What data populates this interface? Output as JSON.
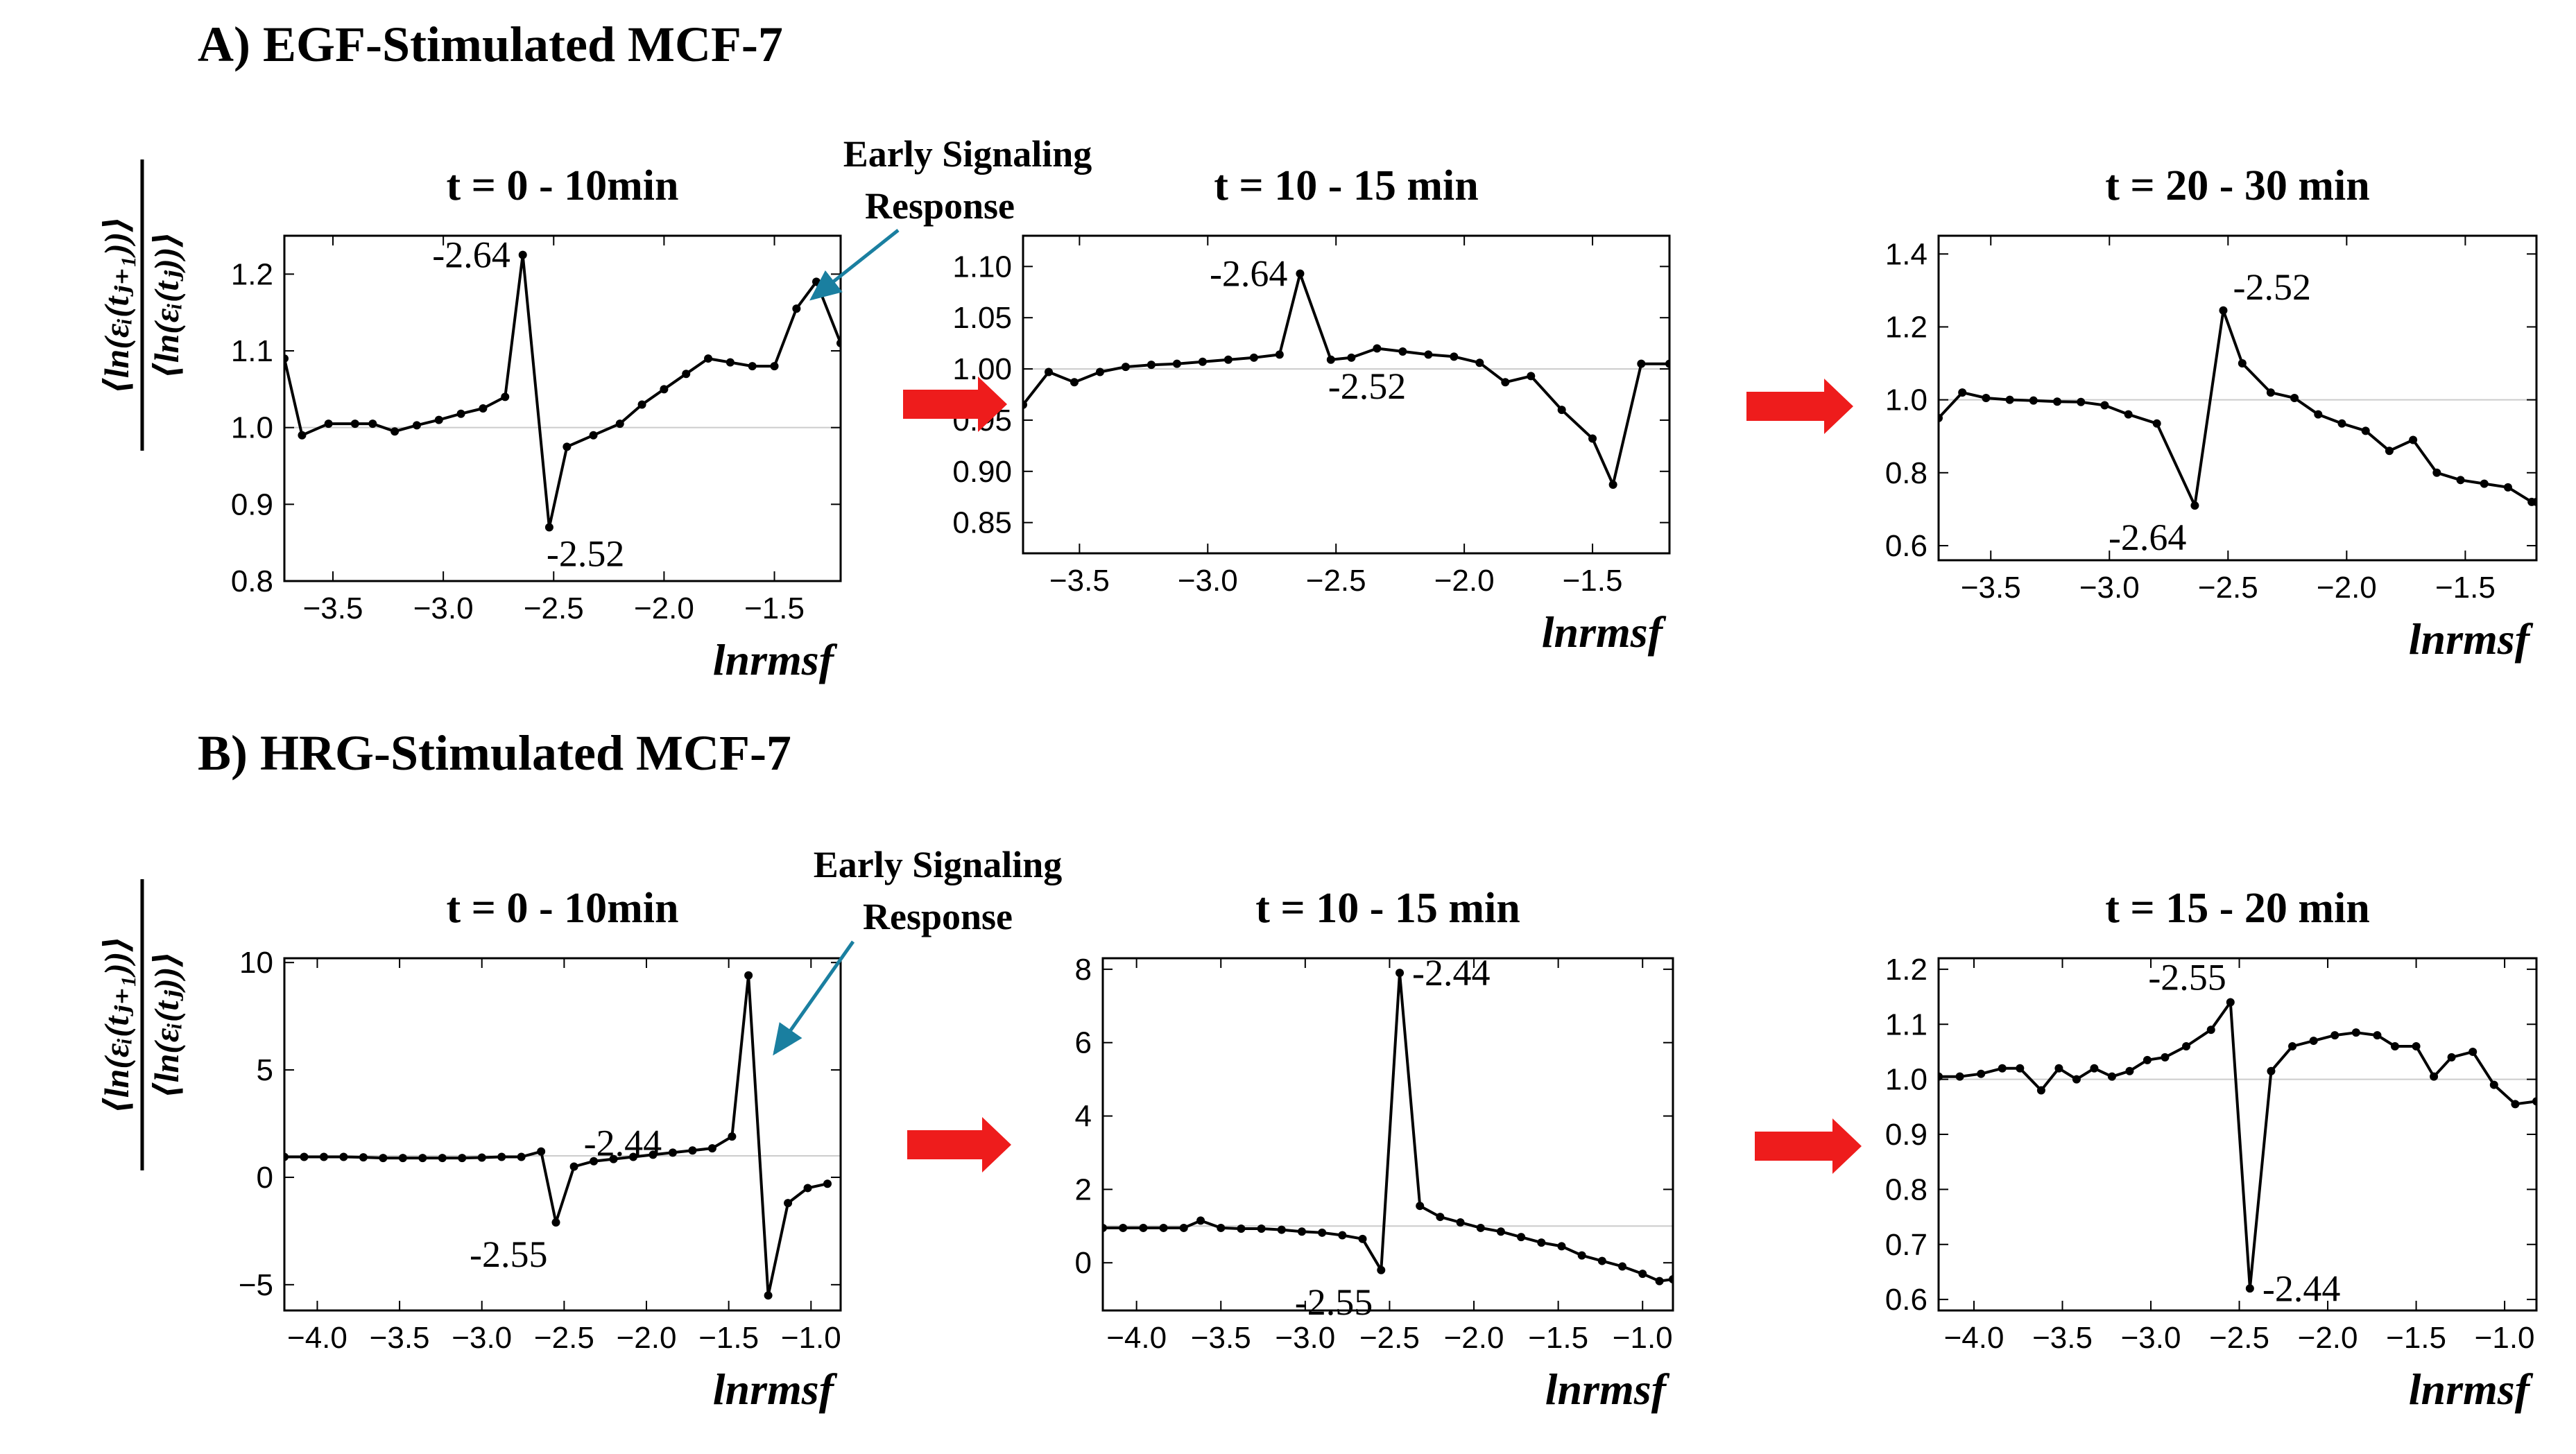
{
  "figure": {
    "section_a": "A) EGF-Stimulated MCF-7",
    "section_b": "B) HRG-Stimulated MCF-7",
    "ylabel_numerator": "⟨ln(εᵢ(tⱼ₊₁))⟩",
    "ylabel_denominator": "⟨ln(εᵢ(tⱼ))⟩",
    "early_line1": "Early Signaling",
    "early_line2": "Response"
  },
  "colors": {
    "line": "#000000",
    "arrow": "#ee1c1c",
    "pointer": "#1a7fa0",
    "refline": "#cccccc"
  },
  "chart_data": [
    {
      "id": "a1",
      "type": "line",
      "title": "t = 0 - 10min",
      "xlabel": "lnrmsf",
      "ylabel": "",
      "xlim": [
        -3.72,
        -1.2
      ],
      "ylim": [
        0.8,
        1.25
      ],
      "xticks": [
        -3.5,
        -3.0,
        -2.5,
        -2.0,
        -1.5
      ],
      "xtick_labels": [
        "−3.5",
        "−3.0",
        "−2.5",
        "−2.0",
        "−1.5"
      ],
      "yticks": [
        0.8,
        0.9,
        1.0,
        1.1,
        1.2
      ],
      "ytick_labels": [
        "0.8",
        "0.9",
        "1.0",
        "1.1",
        "1.2"
      ],
      "refline": 1.0,
      "x": [
        -3.72,
        -3.64,
        -3.52,
        -3.4,
        -3.32,
        -3.22,
        -3.12,
        -3.02,
        -2.92,
        -2.82,
        -2.72,
        -2.64,
        -2.52,
        -2.44,
        -2.32,
        -2.2,
        -2.1,
        -2.0,
        -1.9,
        -1.8,
        -1.7,
        -1.6,
        -1.5,
        -1.4,
        -1.31,
        -1.2
      ],
      "y": [
        1.09,
        0.99,
        1.005,
        1.005,
        1.005,
        0.995,
        1.003,
        1.01,
        1.018,
        1.025,
        1.04,
        1.225,
        0.87,
        0.975,
        0.99,
        1.005,
        1.03,
        1.05,
        1.07,
        1.09,
        1.085,
        1.08,
        1.08,
        1.155,
        1.19,
        1.11
      ],
      "annotations": [
        {
          "text": "-2.64",
          "x": -2.64,
          "y": 1.225,
          "pos": "left"
        },
        {
          "text": "-2.52",
          "x": -2.52,
          "y": 0.87,
          "pos": "below-right"
        }
      ],
      "early_response": {
        "x": -1.31,
        "y": 1.19
      }
    },
    {
      "id": "a2",
      "type": "line",
      "title": "t = 10 - 15 min",
      "xlabel": "lnrmsf",
      "ylabel": "",
      "xlim": [
        -3.72,
        -1.2
      ],
      "ylim": [
        0.82,
        1.13
      ],
      "xticks": [
        -3.5,
        -3.0,
        -2.5,
        -2.0,
        -1.5
      ],
      "xtick_labels": [
        "−3.5",
        "−3.0",
        "−2.5",
        "−2.0",
        "−1.5"
      ],
      "yticks": [
        0.85,
        0.9,
        0.95,
        1.0,
        1.05,
        1.1
      ],
      "ytick_labels": [
        "0.85",
        "0.90",
        "0.95",
        "1.00",
        "1.05",
        "1.10"
      ],
      "refline": 1.0,
      "x": [
        -3.72,
        -3.62,
        -3.52,
        -3.42,
        -3.32,
        -3.22,
        -3.12,
        -3.02,
        -2.92,
        -2.82,
        -2.72,
        -2.64,
        -2.52,
        -2.44,
        -2.34,
        -2.24,
        -2.14,
        -2.04,
        -1.94,
        -1.84,
        -1.74,
        -1.62,
        -1.5,
        -1.42,
        -1.31,
        -1.2
      ],
      "y": [
        0.965,
        0.997,
        0.987,
        0.997,
        1.002,
        1.004,
        1.005,
        1.007,
        1.009,
        1.011,
        1.014,
        1.093,
        1.009,
        1.011,
        1.02,
        1.017,
        1.014,
        1.012,
        1.006,
        0.987,
        0.993,
        0.96,
        0.932,
        0.887,
        1.005,
        1.005
      ],
      "annotations": [
        {
          "text": "-2.64",
          "x": -2.64,
          "y": 1.093,
          "pos": "left"
        },
        {
          "text": "-2.52",
          "x": -2.52,
          "y": 1.009,
          "pos": "below-right"
        }
      ]
    },
    {
      "id": "a3",
      "type": "line",
      "title": "t = 20 - 30 min",
      "xlabel": "lnrmsf",
      "ylabel": "",
      "xlim": [
        -3.72,
        -1.2
      ],
      "ylim": [
        0.56,
        1.45
      ],
      "xticks": [
        -3.5,
        -3.0,
        -2.5,
        -2.0,
        -1.5
      ],
      "xtick_labels": [
        "−3.5",
        "−3.0",
        "−2.5",
        "−2.0",
        "−1.5"
      ],
      "yticks": [
        0.6,
        0.8,
        1.0,
        1.2,
        1.4
      ],
      "ytick_labels": [
        "0.6",
        "0.8",
        "1.0",
        "1.2",
        "1.4"
      ],
      "refline": 1.0,
      "x": [
        -3.72,
        -3.62,
        -3.52,
        -3.42,
        -3.32,
        -3.22,
        -3.12,
        -3.02,
        -2.92,
        -2.8,
        -2.64,
        -2.52,
        -2.44,
        -2.32,
        -2.22,
        -2.12,
        -2.02,
        -1.92,
        -1.82,
        -1.72,
        -1.62,
        -1.52,
        -1.42,
        -1.32,
        -1.22,
        -1.2
      ],
      "y": [
        0.95,
        1.02,
        1.005,
        1.0,
        0.998,
        0.995,
        0.994,
        0.985,
        0.96,
        0.935,
        0.71,
        1.245,
        1.1,
        1.02,
        1.005,
        0.96,
        0.935,
        0.915,
        0.86,
        0.89,
        0.8,
        0.78,
        0.77,
        0.76,
        0.72,
        0.72
      ],
      "annotations": [
        {
          "text": "-2.52",
          "x": -2.52,
          "y": 1.245,
          "pos": "above-right"
        },
        {
          "text": "-2.64",
          "x": -2.64,
          "y": 0.71,
          "pos": "below-left"
        }
      ]
    },
    {
      "id": "b1",
      "type": "line",
      "title": "t = 0 - 10min",
      "xlabel": "lnrmsf",
      "ylabel": "",
      "xlim": [
        -4.2,
        -0.82
      ],
      "ylim": [
        -6.2,
        10.2
      ],
      "xticks": [
        -4.0,
        -3.5,
        -3.0,
        -2.5,
        -2.0,
        -1.5,
        -1.0
      ],
      "xtick_labels": [
        "−4.0",
        "−3.5",
        "−3.0",
        "−2.5",
        "−2.0",
        "−1.5",
        "−1.0"
      ],
      "yticks": [
        -5,
        0,
        5,
        10
      ],
      "ytick_labels": [
        "−5",
        "0",
        "5",
        "10"
      ],
      "refline": 1.0,
      "x": [
        -4.2,
        -4.08,
        -3.96,
        -3.84,
        -3.72,
        -3.6,
        -3.48,
        -3.36,
        -3.24,
        -3.12,
        -3.0,
        -2.88,
        -2.76,
        -2.64,
        -2.55,
        -2.44,
        -2.32,
        -2.2,
        -2.08,
        -1.96,
        -1.84,
        -1.72,
        -1.6,
        -1.48,
        -1.38,
        -1.26,
        -1.14,
        -1.02,
        -0.9
      ],
      "y": [
        0.95,
        0.95,
        0.95,
        0.95,
        0.93,
        0.9,
        0.9,
        0.9,
        0.9,
        0.9,
        0.92,
        0.95,
        0.95,
        1.2,
        -2.1,
        0.5,
        0.75,
        0.85,
        0.95,
        1.05,
        1.15,
        1.25,
        1.35,
        1.9,
        9.4,
        -5.5,
        -1.2,
        -0.5,
        -0.3
      ],
      "annotations": [
        {
          "text": "-2.44",
          "x": -2.44,
          "y": 0.5,
          "pos": "above-right"
        },
        {
          "text": "-2.55",
          "x": -2.55,
          "y": -2.1,
          "pos": "below-left"
        }
      ],
      "early_response": {
        "x": -1.22,
        "y": 5.8
      }
    },
    {
      "id": "b2",
      "type": "line",
      "title": "t = 10 - 15 min",
      "xlabel": "lnrmsf",
      "ylabel": "",
      "xlim": [
        -4.2,
        -0.82
      ],
      "ylim": [
        -1.3,
        8.3
      ],
      "xticks": [
        -4.0,
        -3.5,
        -3.0,
        -2.5,
        -2.0,
        -1.5,
        -1.0
      ],
      "xtick_labels": [
        "−4.0",
        "−3.5",
        "−3.0",
        "−2.5",
        "−2.0",
        "−1.5",
        "−1.0"
      ],
      "yticks": [
        0,
        2,
        4,
        6,
        8
      ],
      "ytick_labels": [
        "0",
        "2",
        "4",
        "6",
        "8"
      ],
      "refline": 1.0,
      "x": [
        -4.2,
        -4.08,
        -3.96,
        -3.84,
        -3.72,
        -3.62,
        -3.5,
        -3.38,
        -3.26,
        -3.14,
        -3.02,
        -2.9,
        -2.78,
        -2.66,
        -2.55,
        -2.44,
        -2.32,
        -2.2,
        -2.08,
        -1.96,
        -1.84,
        -1.72,
        -1.6,
        -1.48,
        -1.36,
        -1.24,
        -1.12,
        -1.0,
        -0.9,
        -0.82
      ],
      "y": [
        0.95,
        0.95,
        0.95,
        0.95,
        0.95,
        1.15,
        0.95,
        0.93,
        0.93,
        0.9,
        0.85,
        0.82,
        0.75,
        0.65,
        -0.2,
        7.9,
        1.55,
        1.25,
        1.1,
        0.95,
        0.85,
        0.7,
        0.55,
        0.45,
        0.2,
        0.05,
        -0.1,
        -0.3,
        -0.5,
        -0.45
      ],
      "annotations": [
        {
          "text": "-2.44",
          "x": -2.44,
          "y": 7.9,
          "pos": "right"
        },
        {
          "text": "-2.55",
          "x": -2.55,
          "y": -0.2,
          "pos": "below-left"
        }
      ]
    },
    {
      "id": "b3",
      "type": "line",
      "title": "t = 15 - 20 min",
      "xlabel": "lnrmsf",
      "ylabel": "",
      "xlim": [
        -4.2,
        -0.82
      ],
      "ylim": [
        0.58,
        1.22
      ],
      "xticks": [
        -4.0,
        -3.5,
        -3.0,
        -2.5,
        -2.0,
        -1.5,
        -1.0
      ],
      "xtick_labels": [
        "−4.0",
        "−3.5",
        "−3.0",
        "−2.5",
        "−2.0",
        "−1.5",
        "−1.0"
      ],
      "yticks": [
        0.6,
        0.7,
        0.8,
        0.9,
        1.0,
        1.1,
        1.2
      ],
      "ytick_labels": [
        "0.6",
        "0.7",
        "0.8",
        "0.9",
        "1.0",
        "1.1",
        "1.2"
      ],
      "refline": 1.0,
      "x": [
        -4.2,
        -4.08,
        -3.96,
        -3.84,
        -3.74,
        -3.62,
        -3.52,
        -3.42,
        -3.32,
        -3.22,
        -3.12,
        -3.02,
        -2.92,
        -2.8,
        -2.66,
        -2.55,
        -2.44,
        -2.32,
        -2.2,
        -2.08,
        -1.96,
        -1.84,
        -1.72,
        -1.62,
        -1.5,
        -1.4,
        -1.3,
        -1.18,
        -1.06,
        -0.94,
        -0.82
      ],
      "y": [
        1.005,
        1.005,
        1.01,
        1.02,
        1.02,
        0.98,
        1.02,
        1.0,
        1.02,
        1.005,
        1.015,
        1.035,
        1.04,
        1.06,
        1.09,
        1.14,
        0.62,
        1.015,
        1.06,
        1.07,
        1.08,
        1.085,
        1.08,
        1.06,
        1.06,
        1.005,
        1.04,
        1.05,
        0.99,
        0.955,
        0.96
      ],
      "annotations": [
        {
          "text": "-2.55",
          "x": -2.55,
          "y": 1.14,
          "pos": "above-left"
        },
        {
          "text": "-2.44",
          "x": -2.44,
          "y": 0.62,
          "pos": "right"
        }
      ]
    }
  ]
}
